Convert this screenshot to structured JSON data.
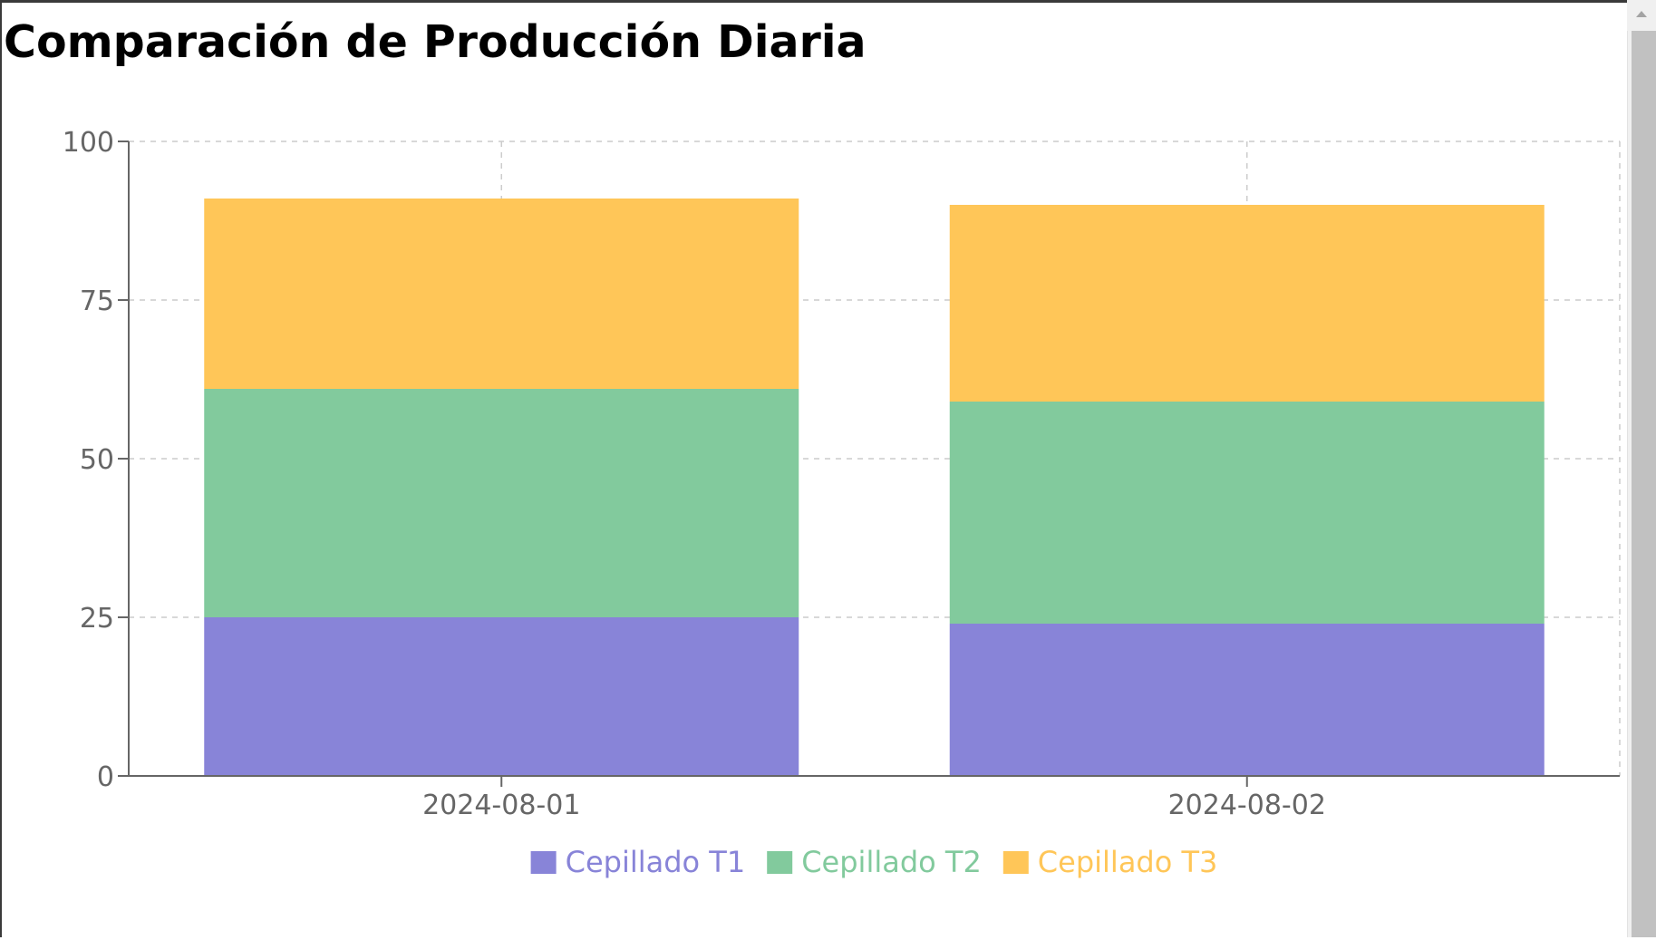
{
  "page": {
    "title": "Comparación de Producción Diaria"
  },
  "chart_data": {
    "type": "bar",
    "stacked": true,
    "categories": [
      "2024-08-01",
      "2024-08-02"
    ],
    "series": [
      {
        "name": "Cepillado T1",
        "values": [
          25,
          24
        ],
        "color": "#8884d8"
      },
      {
        "name": "Cepillado T2",
        "values": [
          36,
          35
        ],
        "color": "#82ca9d"
      },
      {
        "name": "Cepillado T3",
        "values": [
          30,
          31
        ],
        "color": "#ffc658"
      }
    ],
    "ylim": [
      0,
      100
    ],
    "yticks": [
      0,
      25,
      50,
      75,
      100
    ],
    "ytick_labels": [
      "0",
      "25",
      "50",
      "75",
      "100"
    ],
    "grid": true,
    "grid_style": "dashed",
    "legend_position": "bottom-center",
    "xlabel": "",
    "ylabel": ""
  }
}
